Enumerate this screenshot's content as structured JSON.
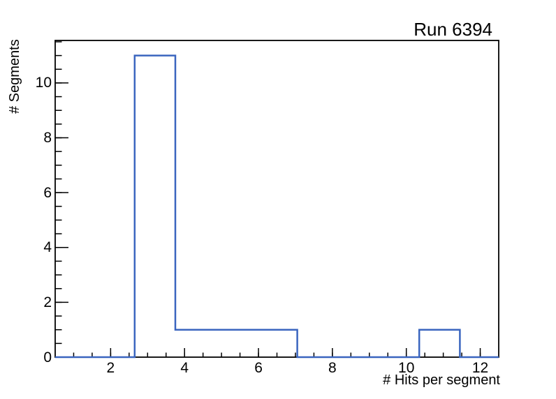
{
  "page": {
    "background_color": "#ffffff",
    "frame_color": "#000000"
  },
  "chart_data": {
    "type": "histogram",
    "title": "Run 6394",
    "xlabel": "# Hits per segment",
    "ylabel": "# Segments",
    "line_color": "#3a65bf",
    "bin_edges": [
      2.65,
      3.75,
      4.85,
      5.95,
      7.05,
      8.15,
      9.25,
      10.35,
      11.45
    ],
    "counts": [
      11,
      1,
      1,
      1,
      0,
      0,
      0,
      1
    ],
    "xlim": [
      0.5,
      12.5
    ],
    "ylim": [
      0,
      11.55
    ],
    "grid": "off",
    "legend": "none",
    "xticks": {
      "major_values": [
        2,
        4,
        6,
        8,
        10,
        12
      ],
      "labels": [
        "2",
        "4",
        "6",
        "8",
        "10",
        "12"
      ],
      "minor_step": 0.5
    },
    "yticks": {
      "major_values": [
        0,
        2,
        4,
        6,
        8,
        10
      ],
      "labels": [
        "0",
        "2",
        "4",
        "6",
        "8",
        "10"
      ],
      "minor_step": 0.5
    }
  }
}
